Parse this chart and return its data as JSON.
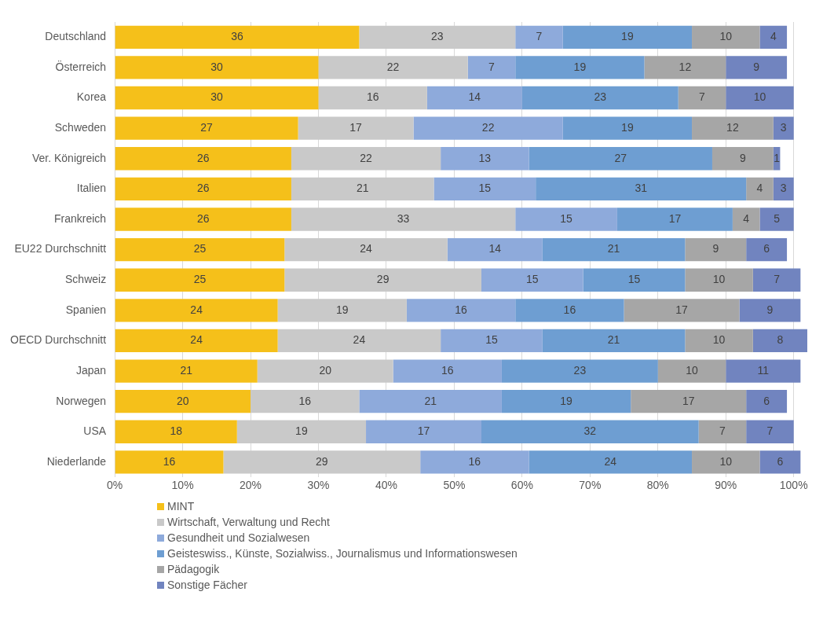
{
  "chart_data": {
    "type": "bar",
    "orientation": "horizontal",
    "stacked": true,
    "data_labels": true,
    "grid": "x",
    "legend": "bottom left",
    "categories": [
      "Deutschland",
      "Österreich",
      "Korea",
      "Schweden",
      "Ver. Königreich",
      "Italien",
      "Frankreich",
      "EU22 Durchschnitt",
      "Schweiz",
      "Spanien",
      "OECD Durchschnitt",
      "Japan",
      "Norwegen",
      "USA",
      "Niederlande"
    ],
    "xlim": [
      0,
      102
    ],
    "xticks": [
      {
        "value": 0,
        "label": "0%"
      },
      {
        "value": 10,
        "label": "10%"
      },
      {
        "value": 20,
        "label": "20%"
      },
      {
        "value": 30,
        "label": "30%"
      },
      {
        "value": 40,
        "label": "40%"
      },
      {
        "value": 50,
        "label": "50%"
      },
      {
        "value": 60,
        "label": "60%"
      },
      {
        "value": 70,
        "label": "70%"
      },
      {
        "value": 80,
        "label": "80%"
      },
      {
        "value": 90,
        "label": "90%"
      },
      {
        "value": 100,
        "label": "100%"
      }
    ],
    "series": [
      {
        "name": "MINT",
        "color": "#f5c01a",
        "values": [
          36,
          30,
          30,
          27,
          26,
          26,
          26,
          25,
          25,
          24,
          24,
          21,
          20,
          18,
          16
        ]
      },
      {
        "name": "Wirtschaft, Verwaltung und Recht",
        "color": "#c9c9c9",
        "values": [
          23,
          22,
          16,
          17,
          22,
          21,
          33,
          24,
          29,
          19,
          24,
          20,
          16,
          19,
          29
        ]
      },
      {
        "name": "Gesundheit und Sozialwesen",
        "color": "#8eaadb",
        "values": [
          7,
          7,
          14,
          22,
          13,
          15,
          15,
          14,
          15,
          16,
          15,
          16,
          21,
          17,
          16
        ]
      },
      {
        "name": "Geisteswiss., Künste, Sozialwiss., Journalismus und Informationswesen",
        "color": "#6e9ed2",
        "values": [
          19,
          19,
          23,
          19,
          27,
          31,
          17,
          21,
          15,
          16,
          21,
          23,
          19,
          32,
          24
        ]
      },
      {
        "name": "Pädagogik",
        "color": "#a6a6a6",
        "values": [
          10,
          12,
          7,
          12,
          9,
          4,
          4,
          9,
          10,
          17,
          10,
          10,
          17,
          7,
          10
        ]
      },
      {
        "name": "Sonstige Fächer",
        "color": "#7184bf",
        "values": [
          4,
          9,
          10,
          3,
          1,
          3,
          5,
          6,
          7,
          9,
          8,
          11,
          6,
          7,
          6
        ]
      }
    ]
  }
}
